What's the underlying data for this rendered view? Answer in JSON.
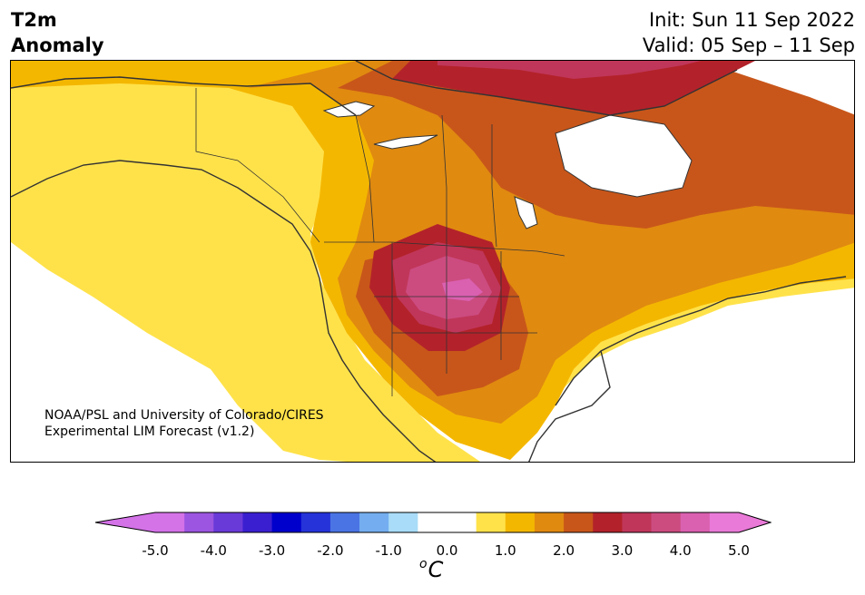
{
  "title": {
    "variable_line1": "T2m",
    "variable_line2": "Anomaly",
    "init": "Init: Sun 11 Sep 2022",
    "valid": "Valid: 05 Sep – 11 Sep"
  },
  "credit": {
    "line1": "NOAA/PSL and University of Colorado/CIRES",
    "line2": "Experimental LIM Forecast (v1.2)"
  },
  "colorbar": {
    "unit_super": "o",
    "unit": "C",
    "ticks": [
      "-5.0",
      "-4.0",
      "-3.0",
      "-2.0",
      "-1.0",
      "0.0",
      "1.0",
      "2.0",
      "3.0",
      "4.0",
      "5.0"
    ],
    "colors": [
      "#d472e8",
      "#9b55e0",
      "#6a3ad8",
      "#3a1fd0",
      "#0000cc",
      "#2533d8",
      "#4a74e4",
      "#74aef0",
      "#a9dcf8",
      "#ffffff",
      "#ffffff",
      "#ffe24a",
      "#f4b700",
      "#e08a10",
      "#c8561a",
      "#b3222a",
      "#c0365a",
      "#cc4c80",
      "#da60b0",
      "#e97ad8"
    ],
    "min_color": "#d472e8",
    "max_color": "#e97ad8"
  },
  "map_colors": {
    "c05": "#ffe24a",
    "c10": "#f4b700",
    "c15": "#e08a10",
    "c20": "#c8561a",
    "c25": "#b3222a",
    "c30": "#c0365a",
    "c35": "#cc4c80",
    "c40": "#da60b0",
    "land_line": "#333333"
  }
}
